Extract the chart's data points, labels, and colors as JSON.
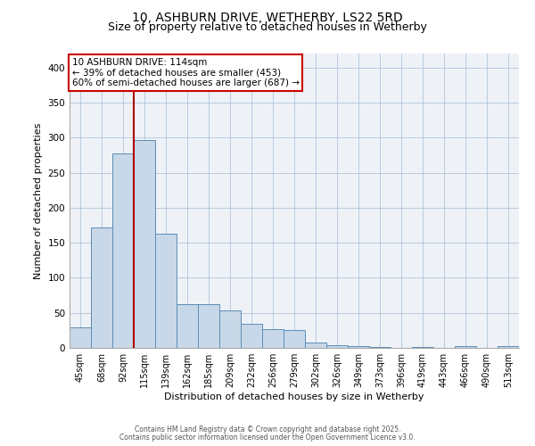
{
  "title1": "10, ASHBURN DRIVE, WETHERBY, LS22 5RD",
  "title2": "Size of property relative to detached houses in Wetherby",
  "xlabel": "Distribution of detached houses by size in Wetherby",
  "ylabel": "Number of detached properties",
  "categories": [
    "45sqm",
    "68sqm",
    "92sqm",
    "115sqm",
    "139sqm",
    "162sqm",
    "185sqm",
    "209sqm",
    "232sqm",
    "256sqm",
    "279sqm",
    "302sqm",
    "326sqm",
    "349sqm",
    "373sqm",
    "396sqm",
    "419sqm",
    "443sqm",
    "466sqm",
    "490sqm",
    "513sqm"
  ],
  "values": [
    29,
    172,
    278,
    297,
    163,
    62,
    62,
    54,
    34,
    27,
    26,
    8,
    4,
    3,
    1,
    0,
    1,
    0,
    3,
    0,
    3
  ],
  "bar_color": "#c8d8e8",
  "bar_edge_color": "#5b8db8",
  "vline_bin_index": 3,
  "vline_color": "#aa0000",
  "annotation_line1": "10 ASHBURN DRIVE: 114sqm",
  "annotation_line2": "← 39% of detached houses are smaller (453)",
  "annotation_line3": "60% of semi-detached houses are larger (687) →",
  "annotation_box_color": "#cc0000",
  "annotation_text_color": "#000000",
  "ylim": [
    0,
    420
  ],
  "yticks": [
    0,
    50,
    100,
    150,
    200,
    250,
    300,
    350,
    400
  ],
  "bg_color": "#eef2f7",
  "grid_color": "#b0c4d8",
  "footer1": "Contains HM Land Registry data © Crown copyright and database right 2025.",
  "footer2": "Contains public sector information licensed under the Open Government Licence v3.0.",
  "title_fontsize": 10,
  "subtitle_fontsize": 9,
  "bar_width": 1.0
}
